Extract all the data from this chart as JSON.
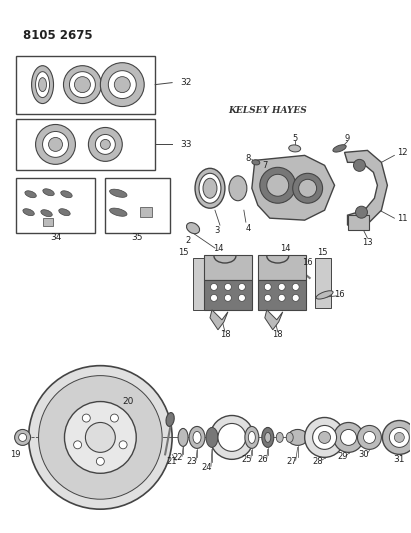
{
  "title": "8105 2675",
  "subtitle": "KELSEY HAYES",
  "bg_color": "#ffffff",
  "fig_width": 4.11,
  "fig_height": 5.33,
  "dpi": 100
}
